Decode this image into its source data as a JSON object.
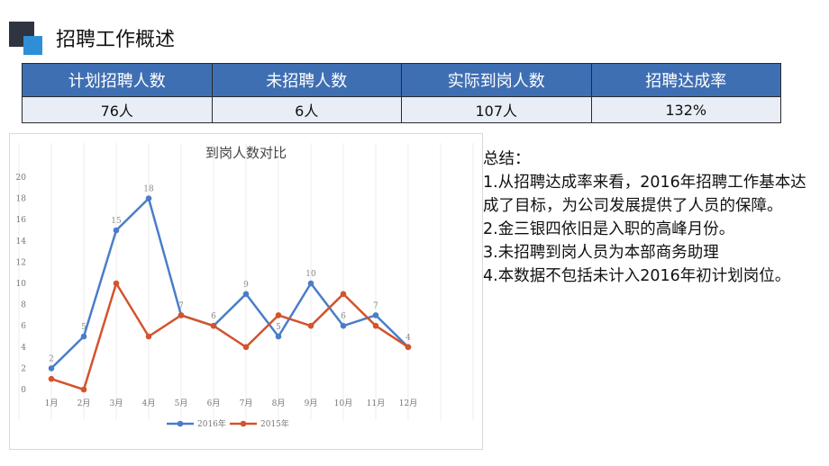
{
  "page": {
    "title": "招聘工作概述"
  },
  "summary_table": {
    "headers": [
      "计划招聘人数",
      "未招聘人数",
      "实际到岗人数",
      "招聘达成率"
    ],
    "values": [
      "76人",
      "6人",
      "107人",
      "132%"
    ]
  },
  "colors": {
    "header_bg": "#3f6fb3",
    "series_2016": "#4a7dc9",
    "series_2015": "#d4532c"
  },
  "notes": [
    "总结：",
    "1.从招聘达成率来看，2016年招聘工作基本达成了目标，为公司发展提供了人员的保障。",
    "2.金三银四依旧是入职的高峰月份。",
    "3.未招聘到岗人员为本部商务助理",
    "4.本数据不包括未计入2016年初计划岗位。"
  ],
  "chart_data": {
    "type": "line",
    "title": "到岗人数对比",
    "categories": [
      "1月",
      "2月",
      "3月",
      "4月",
      "5月",
      "6月",
      "7月",
      "8月",
      "9月",
      "10月",
      "11月",
      "12月"
    ],
    "series": [
      {
        "name": "2016年",
        "values": [
          2,
          5,
          15,
          18,
          7,
          6,
          9,
          5,
          10,
          6,
          7,
          4
        ],
        "color": "#4a7dc9",
        "show_labels": true
      },
      {
        "name": "2015年",
        "values": [
          1,
          0,
          10,
          5,
          7,
          6,
          4,
          7,
          6,
          9,
          6,
          4
        ],
        "color": "#d4532c",
        "show_labels": false
      }
    ],
    "yticks": [
      "0",
      "2",
      "4",
      "6",
      "8",
      "10",
      "12",
      "14",
      "16",
      "18",
      "20"
    ],
    "ylim": [
      0,
      20
    ],
    "grid": "vertical",
    "legend_position": "bottom"
  }
}
